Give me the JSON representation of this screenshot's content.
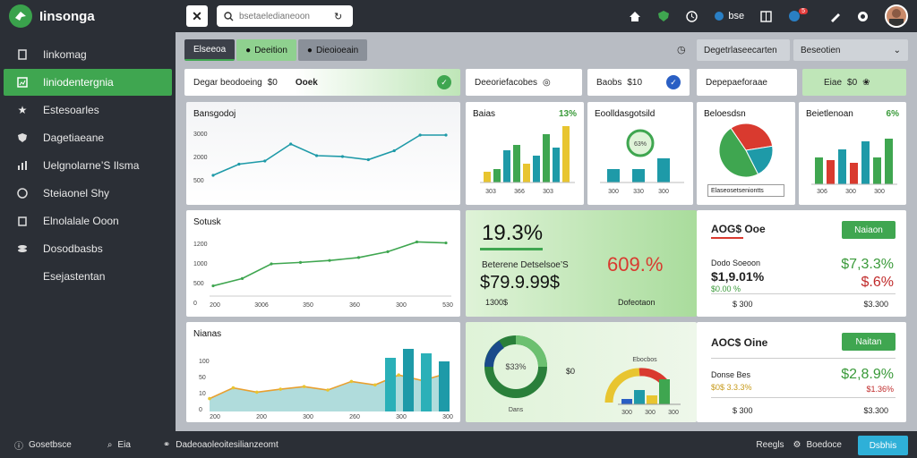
{
  "app": {
    "name": "Iinsonga"
  },
  "sidebar": {
    "items": [
      {
        "label": "Iinkomag",
        "icon": "document-icon"
      },
      {
        "label": "Iiniodentergnia",
        "icon": "chart-icon",
        "active": true
      },
      {
        "label": "Estesoarles",
        "icon": "star-icon"
      },
      {
        "label": "Dagetiaeane",
        "icon": "shield-icon"
      },
      {
        "label": "Uelgnolarne’S Ilsma",
        "icon": "bar-icon"
      },
      {
        "label": "Steiaonel Shy",
        "icon": "compass-icon"
      },
      {
        "label": "Elnolalale Ooon",
        "icon": "copy-icon"
      },
      {
        "label": "Dosodbasbs",
        "icon": "stack-icon"
      },
      {
        "label": "Esejastentan",
        "icon": "none"
      }
    ]
  },
  "topbar": {
    "search_placeholder": "bsetaeledianeoon",
    "icons": [
      "home-icon",
      "shield-icon",
      "clock-icon",
      "bluebird-icon",
      "grid-icon",
      "notify-icon",
      "tool-icon",
      "gift-icon"
    ],
    "bluebird_label": "bse",
    "badge_count": "5"
  },
  "tabs": [
    {
      "label": "Elseeoa",
      "active": true
    },
    {
      "label": "Deeition",
      "green": true
    },
    {
      "label": "Dieoioeain"
    }
  ],
  "filters": {
    "left": "Degetrlaseecarten",
    "right": "Beseotien"
  },
  "stats": [
    {
      "label": "Degar beodoeing",
      "value": "$0",
      "extra": "Ooek"
    },
    {
      "label": "Deeoriefacobes"
    },
    {
      "label": "Baobs",
      "value": "$10"
    },
    {
      "label": "Depepaeforaae"
    },
    {
      "label": "Eiae",
      "value": "$0"
    }
  ],
  "cards": {
    "line1": {
      "title": "Bansgodoj",
      "yticks": [
        "3000",
        "2000",
        "500"
      ],
      "values": [
        20,
        45,
        52,
        90,
        64,
        62,
        55,
        75,
        110,
        110
      ]
    },
    "line2": {
      "title": "Sotusk",
      "yticks": [
        "1200",
        "1000",
        "500",
        "0"
      ],
      "xticks": [
        "200",
        "3006",
        "350",
        "360",
        "300",
        "530"
      ],
      "values": [
        10,
        25,
        55,
        58,
        62,
        68,
        80,
        100,
        98
      ]
    },
    "area": {
      "title": "Nianas",
      "yticks": [
        "100",
        "50",
        "10",
        "0"
      ],
      "xticks": [
        "200",
        "200",
        "300",
        "260",
        "300",
        "300"
      ],
      "values": [
        30,
        55,
        45,
        52,
        58,
        50,
        70,
        62,
        85,
        72,
        88
      ]
    },
    "bars1": {
      "title": "Baias",
      "pct": "13%",
      "xticks": [
        "303",
        "366",
        "303"
      ],
      "values": [
        20,
        25,
        60,
        70,
        35,
        50,
        90,
        65,
        105
      ]
    },
    "donut_mini": {
      "title": "Eoolldasgotsild",
      "value": "63%",
      "xticks": [
        "300",
        "330",
        "300"
      ],
      "values": [
        25,
        25,
        45
      ]
    },
    "pie": {
      "title": "Beloesdsn",
      "legend": "Elaseosetseniontts",
      "slices": [
        48,
        32,
        20
      ]
    },
    "bars2": {
      "title": "Beietlenoan",
      "pct": "6%",
      "xticks": [
        "306",
        "300",
        "300"
      ],
      "values": [
        50,
        45,
        65,
        40,
        80,
        50,
        85
      ]
    },
    "kpi_green": {
      "big": "19.3%",
      "label": "Beterene Detselsoe’S",
      "value": "$79.9.99$",
      "right_big": "609.%",
      "left_foot": "1300$",
      "right_foot": "Dofeotaon"
    },
    "kpi1": {
      "title": "AOG$ Ooe",
      "btn": "Naiaon",
      "line1": "Dodo Soeoon",
      "val": "$1,9.01%",
      "sub": "$0.00 %",
      "green_val": "$7,3.3%",
      "red_val": "$.6%",
      "foot_left": "$ 300",
      "foot_right": "$3.300"
    },
    "donut_big": {
      "center": "$33%",
      "label": "Dans",
      "side": "$0"
    },
    "semi": {
      "title": "Ebocbos",
      "xticks": [
        "300",
        "300",
        "300"
      ],
      "values": [
        15,
        40,
        25,
        70
      ]
    },
    "kpi2": {
      "title": "AOC$ Oine",
      "btn": "Naitan",
      "line1": "Donse Bes",
      "sub": "$0$ 3.3.3%",
      "green_val": "$2,8.9%",
      "red_val": "$1.36%",
      "foot_left": "$ 300",
      "foot_right": "$3.300"
    }
  },
  "bottombar": {
    "items": [
      "Gosetbsce",
      "Eia",
      "Dadeoaoleoitesilianzeomt"
    ],
    "right_items": [
      "Reegls",
      "Boedoce"
    ],
    "share": "Dsbhis"
  },
  "colors": {
    "green": "#3fa650",
    "teal": "#1e9aa8",
    "red": "#d93a2f",
    "yellow": "#e8c530",
    "blue": "#2a7fc4"
  }
}
